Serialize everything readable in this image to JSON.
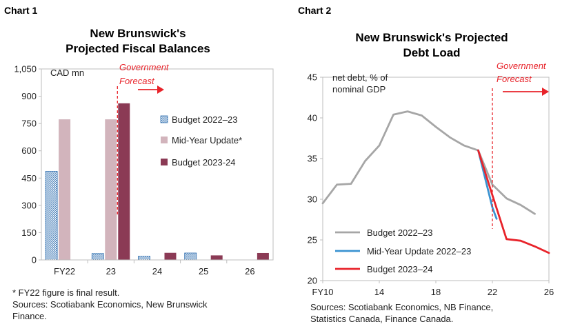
{
  "chart1": {
    "label": "Chart 1",
    "title_line1": "New Brunswick's",
    "title_line2": "Projected Fiscal Balances",
    "unit_label": "CAD mn",
    "forecast_line1": "Government",
    "forecast_line2": "Forecast",
    "footnote": "* FY22 figure is final result.",
    "sources_line1": "Sources: Scotiabank Economics, New Brunswick",
    "sources_line2": "Finance.",
    "colors": {
      "budget_2022_23": "#2f6fb0",
      "mid_year": "#d2b4bc",
      "budget_2023_24": "#8b3a55"
    }
  },
  "chart2": {
    "label": "Chart 2",
    "title_line1": "New Brunswick's Projected",
    "title_line2": "Debt Load",
    "unit_line1": "net debt, % of",
    "unit_line2": "nominal GDP",
    "forecast_line1": "Government",
    "forecast_line2": "Forecast",
    "sources_line1": "Sources: Scotiabank Economics, NB Finance,",
    "sources_line2": "Statistics Canada, Finance Canada.",
    "colors": {
      "budget_2022_23": "#a6a6a6",
      "mid_year": "#3a93d1",
      "budget_2023_24": "#e8232a"
    }
  },
  "chart_data": [
    {
      "type": "bar",
      "title": "New Brunswick's Projected Fiscal Balances",
      "ylabel": "CAD mn",
      "ylim": [
        0,
        1050
      ],
      "yticks": [
        "0",
        "150",
        "300",
        "450",
        "600",
        "750",
        "900",
        "1,050"
      ],
      "ytick_values": [
        0,
        150,
        300,
        450,
        600,
        750,
        900,
        1050
      ],
      "categories": [
        "FY22",
        "23",
        "24",
        "25",
        "26"
      ],
      "legend_position": "right",
      "series": [
        {
          "name": "Budget 2022–23",
          "values": [
            487,
            35,
            20,
            38,
            null
          ]
        },
        {
          "name": "Mid-Year Update*",
          "values": [
            773,
            773,
            null,
            null,
            null
          ]
        },
        {
          "name": "Budget 2023-24",
          "values": [
            null,
            861,
            39,
            25,
            38
          ]
        }
      ]
    },
    {
      "type": "line",
      "title": "New Brunswick's Projected Debt Load",
      "ylabel": "net debt, % of nominal GDP",
      "ylim": [
        20,
        45
      ],
      "yticks": [
        "20",
        "25",
        "30",
        "35",
        "40",
        "45"
      ],
      "ytick_values": [
        20,
        25,
        30,
        35,
        40,
        45
      ],
      "xlim": [
        10,
        26
      ],
      "xticks": [
        "FY10",
        "14",
        "18",
        "22",
        "26"
      ],
      "xtick_values": [
        10,
        14,
        18,
        22,
        26
      ],
      "legend_position": "bottom-left",
      "series": [
        {
          "name": "Budget 2022–23",
          "x": [
            10,
            11,
            12,
            13,
            14,
            15,
            16,
            17,
            18,
            19,
            20,
            21,
            22,
            23,
            24,
            25
          ],
          "y": [
            29.5,
            31.8,
            31.9,
            34.7,
            36.6,
            40.4,
            40.8,
            40.3,
            38.9,
            37.6,
            36.6,
            36.0,
            31.8,
            30.1,
            29.3,
            28.2
          ]
        },
        {
          "name": "Mid-Year Update 2022–23",
          "x": [
            21,
            22,
            22.3
          ],
          "y": [
            36.0,
            29.0,
            27.6
          ]
        },
        {
          "name": "Budget 2023–24",
          "x": [
            21,
            22,
            23,
            24,
            25,
            26
          ],
          "y": [
            36.0,
            30.5,
            25.1,
            24.9,
            24.2,
            23.4
          ]
        }
      ]
    }
  ]
}
